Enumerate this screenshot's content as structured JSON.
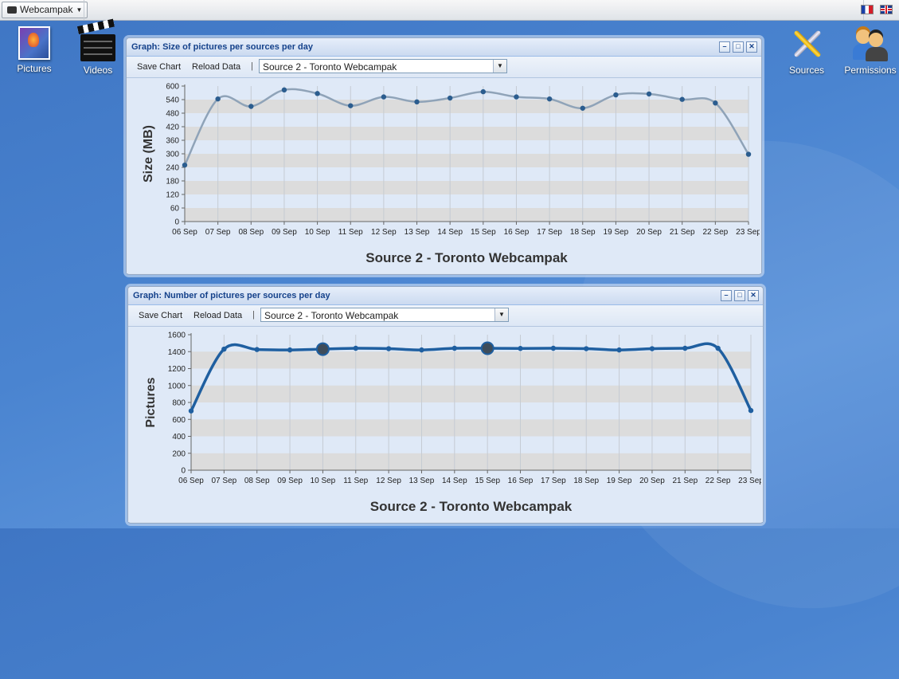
{
  "topbar": {
    "app_name": "Webcampak"
  },
  "desktop": {
    "left_icons": [
      {
        "label": "Pictures"
      },
      {
        "label": "Videos"
      }
    ],
    "right_icons": [
      {
        "label": "Sources"
      },
      {
        "label": "Permissions"
      }
    ]
  },
  "windows": [
    {
      "title": "Graph: Size of pictures per sources per day",
      "save_label": "Save Chart",
      "reload_label": "Reload Data",
      "selected_source": "Source 2 - Toronto Webcampak"
    },
    {
      "title": "Graph: Number of pictures per sources per day",
      "save_label": "Save Chart",
      "reload_label": "Reload Data",
      "selected_source": "Source 2 - Toronto Webcampak"
    }
  ],
  "chart_data": [
    {
      "type": "line",
      "title": "Source 2 - Toronto Webcampak",
      "xlabel": "",
      "ylabel": "Size (MB)",
      "x": [
        "06 Sep",
        "07 Sep",
        "08 Sep",
        "09 Sep",
        "10 Sep",
        "11 Sep",
        "12 Sep",
        "13 Sep",
        "14 Sep",
        "15 Sep",
        "16 Sep",
        "17 Sep",
        "18 Sep",
        "19 Sep",
        "20 Sep",
        "21 Sep",
        "22 Sep",
        "23 Sep"
      ],
      "y": [
        250,
        543,
        510,
        583,
        567,
        513,
        552,
        530,
        547,
        575,
        552,
        543,
        502,
        561,
        565,
        541,
        525,
        298
      ],
      "ylim": [
        0,
        600
      ],
      "yticks": [
        0,
        60,
        120,
        180,
        240,
        300,
        360,
        420,
        480,
        540,
        600
      ],
      "color": "#8fa3b8",
      "marker_color": "#2b5d8f",
      "grid": true
    },
    {
      "type": "line",
      "title": "Source 2 - Toronto Webcampak",
      "xlabel": "",
      "ylabel": "Pictures",
      "x": [
        "06 Sep",
        "07 Sep",
        "08 Sep",
        "09 Sep",
        "10 Sep",
        "11 Sep",
        "12 Sep",
        "13 Sep",
        "14 Sep",
        "15 Sep",
        "16 Sep",
        "17 Sep",
        "18 Sep",
        "19 Sep",
        "20 Sep",
        "21 Sep",
        "22 Sep",
        "23 Sep"
      ],
      "y": [
        700,
        1430,
        1425,
        1420,
        1430,
        1440,
        1435,
        1420,
        1440,
        1440,
        1438,
        1440,
        1435,
        1420,
        1435,
        1440,
        1440,
        705
      ],
      "ylim": [
        0,
        1600
      ],
      "yticks": [
        0,
        200,
        400,
        600,
        800,
        1000,
        1200,
        1400,
        1600
      ],
      "highlighted": [
        "10 Sep",
        "15 Sep"
      ],
      "color": "#1f5fa0",
      "marker_color": "#1f5fa0",
      "grid": true
    }
  ]
}
